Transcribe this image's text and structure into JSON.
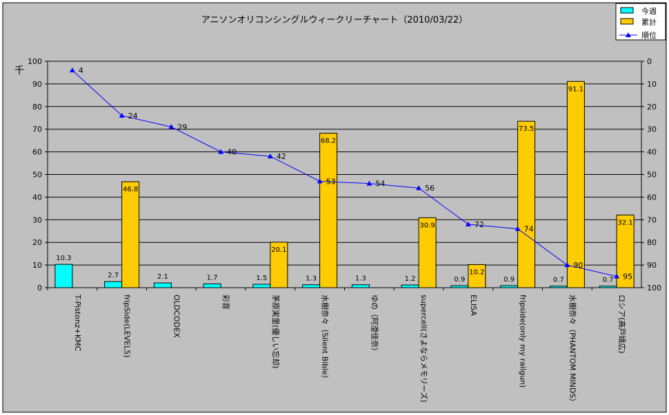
{
  "chart_data": {
    "type": "bar+line",
    "title": "アニソンオリコンシングルウィークリーチャート（2010/03/22）",
    "ylabel_left": "千",
    "ylim_left": [
      0,
      100
    ],
    "yticks_left": [
      "0",
      "10",
      "20",
      "30",
      "40",
      "50",
      "60",
      "70",
      "80",
      "90",
      "100"
    ],
    "ylim_right": [
      100,
      0
    ],
    "yticks_right": [
      "0",
      "10",
      "20",
      "30",
      "40",
      "50",
      "60",
      "70",
      "80",
      "90",
      "100"
    ],
    "grid": true,
    "legend_position": "top-right",
    "categories": [
      "T-Pistonz+KMC",
      "fripSide(LEVEL5)",
      "OLDCODEX",
      "彩音",
      "茅原実里(優しい忘却)",
      "水樹奈々（Silent Bible）",
      "ゆの（阿澄佳奈）",
      "supercell(さよならメモリーズ)",
      "ELISA",
      "fripside(only my railgun)",
      "水樹奈々（PHANTOM MINDS）",
      "ロシア(高戸靖広)"
    ],
    "series": [
      {
        "name": "今週",
        "type": "bar",
        "axis": "left",
        "color": "#00FFFF",
        "values": [
          10.3,
          2.7,
          2.1,
          1.7,
          1.5,
          1.3,
          1.3,
          1.2,
          0.9,
          0.9,
          0.7,
          0.7
        ],
        "labels": [
          "10.3",
          "2.7",
          "2.1",
          "1.7",
          "1.5",
          "1.3",
          "1.3",
          "1.2",
          "0.9",
          "0.9",
          "0.7",
          "0.7"
        ]
      },
      {
        "name": "累計",
        "type": "bar",
        "axis": "left",
        "color": "#FFCC00",
        "values": [
          null,
          46.8,
          null,
          null,
          20.1,
          68.2,
          null,
          30.9,
          10.2,
          73.5,
          91.1,
          32.1
        ],
        "labels": [
          "",
          "46.8",
          "",
          "",
          "20.1",
          "68.2",
          "",
          "30.9",
          "10.2",
          "73.5",
          "91.1",
          "32.1"
        ]
      },
      {
        "name": "順位",
        "type": "line",
        "axis": "right",
        "color": "#0000FF",
        "values": [
          4,
          24,
          29,
          40,
          42,
          53,
          54,
          56,
          72,
          74,
          90,
          95
        ],
        "labels": [
          "4",
          "24",
          "29",
          "40",
          "42",
          "53",
          "54",
          "56",
          "72",
          "74",
          "90",
          "95"
        ]
      }
    ]
  }
}
